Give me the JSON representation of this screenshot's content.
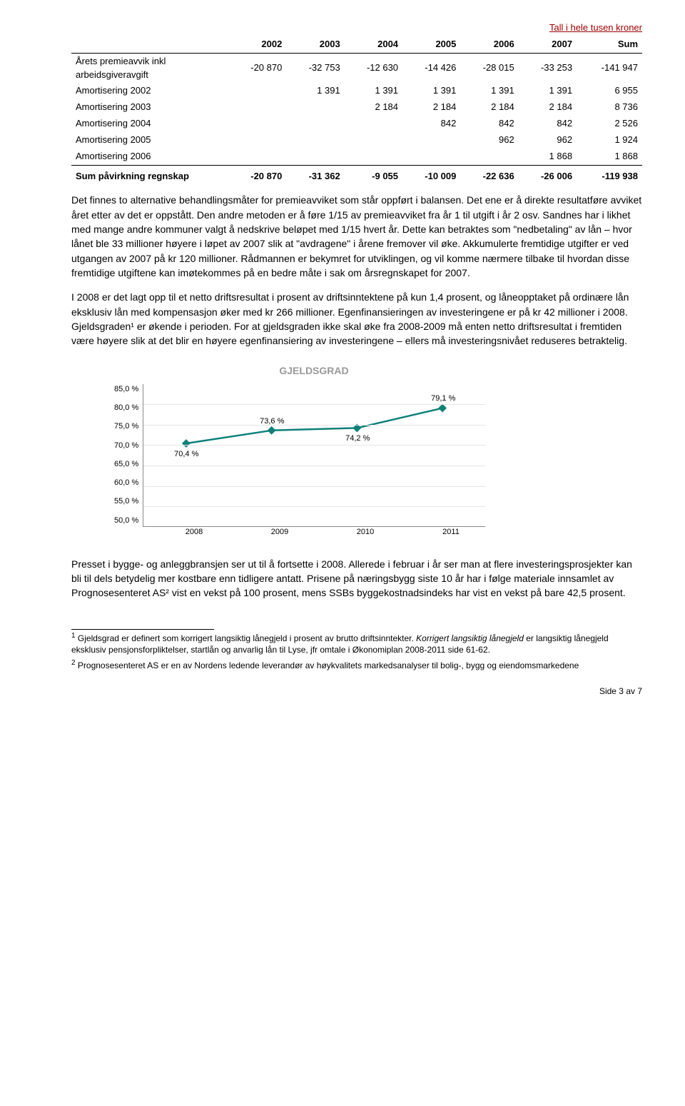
{
  "table": {
    "caption": "Tall i hele tusen kroner",
    "headers": [
      "",
      "2002",
      "2003",
      "2004",
      "2005",
      "2006",
      "2007",
      "Sum"
    ],
    "rows": [
      {
        "label_line1": "Årets premieavvik inkl",
        "label_line2": "arbeidsgiveravgift",
        "cells": [
          "-20 870",
          "-32 753",
          "-12 630",
          "-14 426",
          "-28 015",
          "-33 253",
          "-141 947"
        ]
      },
      {
        "label_line1": "Amortisering 2002",
        "cells": [
          "",
          "1 391",
          "1 391",
          "1 391",
          "1 391",
          "1 391",
          "6 955"
        ]
      },
      {
        "label_line1": "Amortisering 2003",
        "cells": [
          "",
          "",
          "2 184",
          "2 184",
          "2 184",
          "2 184",
          "8 736"
        ]
      },
      {
        "label_line1": "Amortisering 2004",
        "cells": [
          "",
          "",
          "",
          "842",
          "842",
          "842",
          "2 526"
        ]
      },
      {
        "label_line1": "Amortisering 2005",
        "cells": [
          "",
          "",
          "",
          "",
          "962",
          "962",
          "1 924"
        ]
      },
      {
        "label_line1": "Amortisering 2006",
        "cells": [
          "",
          "",
          "",
          "",
          "",
          "1 868",
          "1 868"
        ]
      }
    ],
    "footer": {
      "label": "Sum påvirkning regnskap",
      "cells": [
        "-20 870",
        "-31 362",
        "-9 055",
        "-10 009",
        "-22 636",
        "-26 006",
        "-119 938"
      ]
    }
  },
  "paragraphs": [
    "Det finnes to alternative behandlingsmåter for premieavviket som står oppført i balansen. Det ene er å direkte resultatføre avviket året etter av det er oppstått. Den andre metoden er å føre 1/15 av premieavviket fra år 1 til utgift i år 2 osv. Sandnes har i likhet med mange andre kommuner valgt å nedskrive beløpet med 1/15 hvert år. Dette kan betraktes som \"nedbetaling\" av lån – hvor lånet ble 33 millioner høyere i løpet av 2007 slik at \"avdragene\" i årene fremover vil øke. Akkumulerte fremtidige utgifter er ved utgangen av 2007 på kr 120 millioner. Rådmannen er bekymret for utviklingen, og vil komme nærmere tilbake til hvordan disse fremtidige utgiftene kan imøtekommes på en bedre måte i sak om årsregnskapet for 2007.",
    "I 2008 er det lagt opp til et netto driftsresultat i prosent av driftsinntektene på kun 1,4 prosent, og låneopptaket på ordinære lån eksklusiv lån med kompensasjon øker med kr 266 millioner. Egenfinansieringen av investeringene er på kr 42 millioner i 2008. Gjeldsgraden¹ er økende i perioden. For at gjeldsgraden ikke skal øke fra 2008-2009 må enten netto driftsresultat i fremtiden være høyere slik at det blir en høyere egenfinansiering av investeringene – ellers må investeringsnivået reduseres betraktelig."
  ],
  "chart": {
    "title": "GJELDSGRAD",
    "type": "line",
    "categories": [
      "2008",
      "2009",
      "2010",
      "2011"
    ],
    "values": [
      70.4,
      73.6,
      74.2,
      79.1
    ],
    "labels": [
      "70,4 %",
      "73,6 %",
      "74,2 %",
      "79,1 %"
    ],
    "label_positions": [
      "below",
      "above",
      "below",
      "above"
    ],
    "ymin": 50.0,
    "ymax": 85.0,
    "ytick_step": 5.0,
    "yticks": [
      "85,0 %",
      "80,0 %",
      "75,0 %",
      "70,0 %",
      "65,0 %",
      "60,0 %",
      "55,0 %",
      "50,0 %"
    ],
    "line_color": "#0d8078",
    "marker_color": "#0d8078",
    "grid_color": "#e5e5e5",
    "line_width": 2.5,
    "marker_size": 6,
    "title_color": "#999999"
  },
  "paragraph_after_chart": "Presset i bygge- og anleggbransjen ser ut til å fortsette i 2008. Allerede i februar i år ser man at flere investeringsprosjekter kan bli til dels betydelig mer kostbare enn tidligere antatt. Prisene på næringsbygg siste 10 år har i følge materiale innsamlet av Prognosesenteret AS² vist en vekst på 100 prosent, mens SSBs  byggekostnadsindeks har vist en vekst på bare 42,5 prosent.",
  "footnotes": [
    {
      "num": "1",
      "text_plain": " Gjeldsgrad er definert som korrigert langsiktig lånegjeld i prosent av brutto driftsinntekter. ",
      "text_italic": "Korrigert langsiktig lånegjeld",
      "text_rest": " er  langsiktig lånegjeld eksklusiv pensjonsforpliktelser, startlån og anvarlig lån til Lyse, jfr omtale i Økonomiplan 2008-2011 side 61-62."
    },
    {
      "num": "2",
      "text_plain": " Prognosesenteret AS er en av Nordens ledende leverandør av høykvalitets markedsanalyser til bolig-, bygg og eiendomsmarkedene"
    }
  ],
  "page_footer": "Side 3 av 7"
}
